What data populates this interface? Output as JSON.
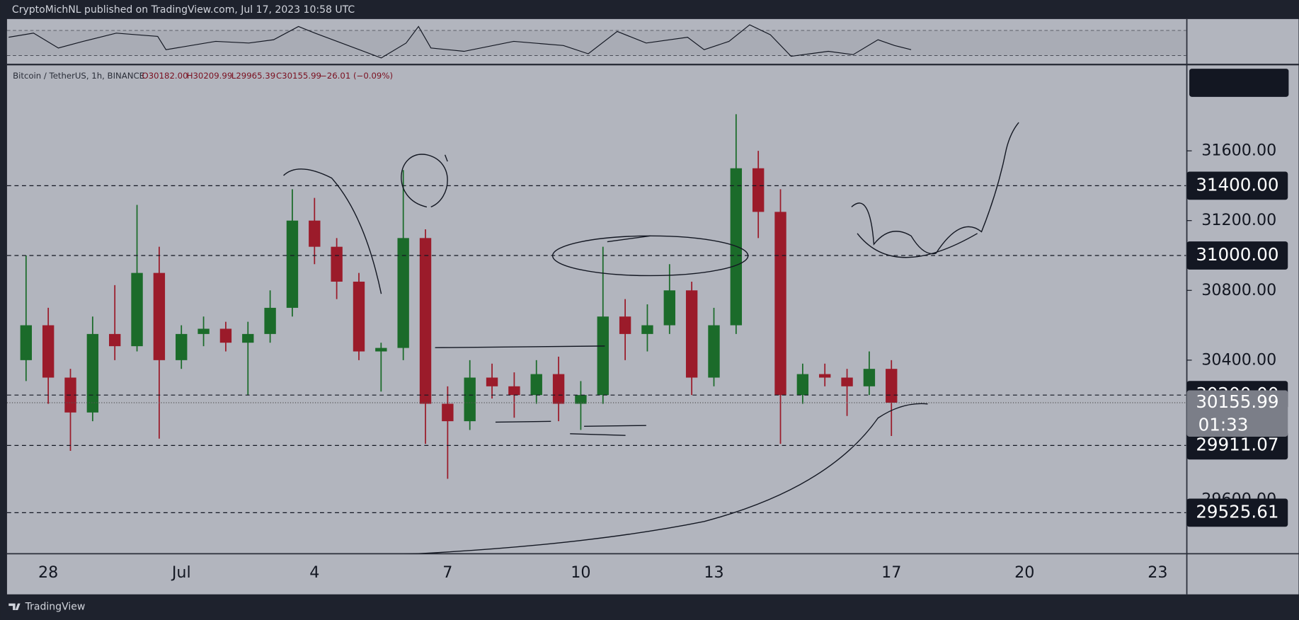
{
  "header": {
    "text": "CryptoMichNL published on TradingView.com, Jul 17, 2023 10:58 UTC"
  },
  "footer": {
    "text": "TradingView"
  },
  "chart_data": {
    "type": "candlestick",
    "legend": {
      "symbol": "Bitcoin / TetherUS, 1h, BINANCE",
      "open": "O30182.00",
      "high": "H30209.99",
      "low": "L29965.39",
      "close": "C30155.99",
      "change": "−26.01 (−0.09%)"
    },
    "categories": [
      null,
      "28",
      null,
      null,
      null,
      null,
      null,
      "Jul",
      null,
      null,
      null,
      null,
      null,
      "4",
      null,
      null,
      null,
      null,
      null,
      "7",
      null,
      null,
      null,
      null,
      null,
      "10",
      null,
      null,
      null,
      null,
      null,
      "13",
      null,
      null,
      null,
      null,
      null,
      null,
      null,
      "17",
      null,
      null,
      null,
      null,
      null,
      "20",
      null,
      null,
      null,
      null,
      null,
      "23",
      null
    ],
    "open": [
      30400,
      30600,
      30300,
      30100,
      30550,
      30480,
      30900,
      30400,
      30550,
      30580,
      30500,
      30550,
      30700,
      31200,
      31050,
      30850,
      30450,
      30470,
      31100,
      30150,
      30050,
      30300,
      30250,
      30200,
      30320,
      30150,
      30200,
      30650,
      30550,
      30600,
      30800,
      30300,
      30600,
      31500,
      31250,
      30200,
      30320,
      30300,
      30250,
      30350,
      null,
      null,
      null,
      null,
      null,
      null,
      null,
      null,
      null,
      null,
      null,
      null,
      null
    ],
    "high": [
      31000,
      30700,
      30350,
      30650,
      30830,
      31290,
      31050,
      30600,
      30650,
      30620,
      30620,
      30800,
      31380,
      31330,
      31100,
      30900,
      30500,
      31490,
      31150,
      30250,
      30400,
      30380,
      30330,
      30400,
      30420,
      30280,
      31050,
      30750,
      30720,
      30950,
      30850,
      30700,
      31810,
      31600,
      31380,
      30380,
      30380,
      30350,
      30450,
      30400,
      null,
      null,
      null,
      null,
      null,
      null,
      null,
      null,
      null,
      null,
      null,
      null,
      null
    ],
    "low": [
      30280,
      30150,
      29880,
      30050,
      30400,
      30450,
      29950,
      30350,
      30480,
      30450,
      30200,
      30500,
      30650,
      30950,
      30750,
      30400,
      30220,
      30400,
      29920,
      29720,
      30000,
      30180,
      30070,
      30150,
      30050,
      30000,
      30150,
      30400,
      30450,
      30550,
      30200,
      30250,
      30550,
      31100,
      29920,
      30150,
      30250,
      30080,
      30200,
      29965.39,
      null,
      null,
      null,
      null,
      null,
      null,
      null,
      null,
      null,
      null,
      null,
      null,
      null
    ],
    "close": [
      30600,
      30300,
      30100,
      30550,
      30480,
      30900,
      30400,
      30550,
      30580,
      30500,
      30550,
      30700,
      31200,
      31050,
      30850,
      30450,
      30470,
      31100,
      30150,
      30050,
      30300,
      30250,
      30200,
      30320,
      30150,
      30200,
      30650,
      30550,
      30600,
      30800,
      30300,
      30600,
      31500,
      31250,
      30200,
      30320,
      30300,
      30250,
      30350,
      30155.99,
      null,
      null,
      null,
      null,
      null,
      null,
      null,
      null,
      null,
      null,
      null,
      null,
      null
    ],
    "up_color": "#1b6b2a",
    "down_color": "#9b1b2a",
    "ylim": [
      29290,
      32085
    ],
    "yticks": [
      {
        "value": 31600,
        "label": "31600.00"
      },
      {
        "value": 31200,
        "label": "31200.00"
      },
      {
        "value": 30800,
        "label": "30800.00"
      },
      {
        "value": 30400,
        "label": "30400.00"
      },
      {
        "value": 29600,
        "label": "29600.00"
      }
    ],
    "levels": [
      {
        "value": 31400,
        "label": "31400.00"
      },
      {
        "value": 31000,
        "label": "31000.00"
      },
      {
        "value": 30200,
        "label": "30200.00"
      },
      {
        "value": 29911.07,
        "label": "29911.07"
      },
      {
        "value": 29525.61,
        "label": "29525.61"
      }
    ],
    "last_price": {
      "value": 30155.99,
      "label": "30155.99",
      "countdown": "01:33"
    }
  }
}
